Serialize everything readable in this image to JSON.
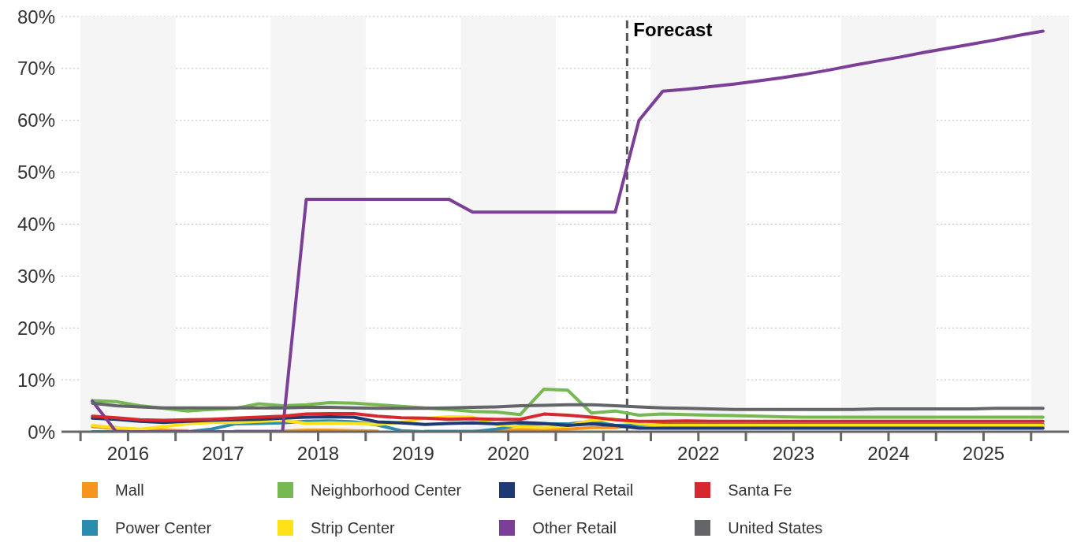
{
  "chart_data": {
    "type": "line",
    "x": [
      2016.125,
      2016.375,
      2016.625,
      2016.875,
      2017.125,
      2017.375,
      2017.625,
      2017.875,
      2018.125,
      2018.375,
      2018.625,
      2018.875,
      2019.125,
      2019.375,
      2019.625,
      2019.875,
      2020.125,
      2020.375,
      2020.625,
      2020.875,
      2021.125,
      2021.375,
      2021.625,
      2021.875,
      2022.125,
      2022.375,
      2022.625,
      2022.875,
      2023.125,
      2023.375,
      2023.625,
      2023.875,
      2024.125,
      2024.375,
      2024.625,
      2024.875,
      2025.125,
      2025.375,
      2025.625,
      2025.875,
      2026.125
    ],
    "series": [
      {
        "name": "Mall",
        "color": "#f7941d",
        "values": [
          1.0,
          0.6,
          0.4,
          0.3,
          0.2,
          null,
          0.1,
          0.1,
          0.1,
          0.3,
          0.3,
          0.2,
          0.1,
          null,
          0.1,
          0.1,
          0.1,
          0.1,
          0.4,
          0.4,
          0.5,
          0.8,
          0.8,
          1.2,
          1.8,
          1.6,
          1.4,
          1.3,
          1.0,
          1.0,
          1.0,
          1.0,
          1.0,
          1.0,
          1.0,
          1.0,
          1.0,
          1.0,
          1.0,
          1.0,
          1.0
        ]
      },
      {
        "name": "Power Center",
        "color": "#2a8cae",
        "values": [
          0,
          0,
          0,
          0,
          0,
          0.5,
          1.5,
          1.6,
          1.7,
          2.0,
          2.1,
          1.9,
          1.3,
          0.2,
          0,
          0,
          0,
          0.5,
          1.3,
          1.5,
          1.5,
          2.0,
          1.2,
          1.3,
          1.4,
          1.4,
          1.4,
          1.4,
          1.4,
          1.4,
          1.4,
          1.4,
          1.4,
          1.4,
          1.4,
          1.4,
          1.4,
          1.4,
          1.4,
          1.4,
          1.4
        ]
      },
      {
        "name": "Neighborhood Center",
        "color": "#76b852",
        "values": [
          6.0,
          5.8,
          5.0,
          4.5,
          4.0,
          4.3,
          4.5,
          5.4,
          5.0,
          5.2,
          5.6,
          5.5,
          5.2,
          4.9,
          4.6,
          4.3,
          3.9,
          3.8,
          3.3,
          8.2,
          8.0,
          3.6,
          4.0,
          3.2,
          3.4,
          3.3,
          3.2,
          3.1,
          3.0,
          2.9,
          2.8,
          2.8,
          2.8,
          2.8,
          2.8,
          2.8,
          2.8,
          2.8,
          2.8,
          2.8,
          2.8
        ]
      },
      {
        "name": "Strip Center",
        "color": "#ffe11a",
        "values": [
          1.2,
          0.8,
          0.5,
          1.0,
          1.5,
          1.8,
          1.8,
          2.0,
          2.2,
          1.6,
          1.7,
          1.6,
          1.4,
          1.8,
          2.6,
          2.9,
          2.8,
          1.4,
          1.0,
          0.8,
          1.1,
          2.2,
          2.4,
          1.5,
          1.2,
          1.2,
          1.2,
          1.2,
          1.2,
          1.2,
          1.2,
          1.2,
          1.2,
          1.2,
          1.2,
          1.2,
          1.2,
          1.2,
          1.2,
          1.2,
          1.2
        ]
      },
      {
        "name": "General Retail",
        "color": "#1f3a73",
        "values": [
          2.6,
          2.4,
          2.0,
          1.8,
          2.0,
          2.2,
          2.3,
          2.4,
          2.6,
          2.8,
          2.9,
          2.8,
          1.9,
          1.7,
          1.4,
          1.6,
          1.7,
          1.5,
          1.8,
          1.6,
          1.2,
          1.5,
          1.2,
          0.7,
          0.7,
          0.7,
          0.7,
          0.7,
          0.7,
          0.7,
          0.7,
          0.7,
          0.7,
          0.7,
          0.7,
          0.7,
          0.7,
          0.7,
          0.7,
          0.7,
          0.7
        ]
      },
      {
        "name": "Other Retail",
        "color": "#7b3f98",
        "values": [
          5.9,
          0,
          0,
          0,
          0,
          0,
          0,
          0,
          0,
          44.8,
          44.8,
          44.8,
          44.8,
          44.8,
          44.8,
          44.8,
          42.3,
          42.3,
          42.3,
          42.3,
          42.3,
          42.3,
          42.3,
          60,
          65.6,
          66.0,
          66.5,
          67.0,
          67.6,
          68.2,
          68.9,
          69.7,
          70.6,
          71.4,
          72.2,
          73.1,
          73.9,
          74.7,
          75.5,
          76.4,
          77.2
        ]
      },
      {
        "name": "Santa Fe",
        "color": "#d7282f",
        "values": [
          3.0,
          2.7,
          2.3,
          2.2,
          2.3,
          2.4,
          2.6,
          2.8,
          3.0,
          3.4,
          3.5,
          3.5,
          3.0,
          2.7,
          2.6,
          2.4,
          2.5,
          2.4,
          2.4,
          3.4,
          3.2,
          2.8,
          2.3,
          2.0,
          2.0,
          2.1,
          2.0,
          2.0,
          2.0,
          2.0,
          2.0,
          2.0,
          2.0,
          2.0,
          2.0,
          2.0,
          2.0,
          2.0,
          2.0,
          2.0,
          2.0
        ]
      },
      {
        "name": "United States",
        "color": "#646569",
        "values": [
          5.5,
          5.0,
          4.8,
          4.6,
          4.6,
          4.6,
          4.6,
          4.6,
          4.6,
          4.7,
          4.7,
          4.6,
          4.5,
          4.5,
          4.5,
          4.6,
          4.7,
          4.8,
          5.0,
          5.1,
          5.2,
          5.2,
          5.0,
          4.8,
          4.6,
          4.5,
          4.4,
          4.3,
          4.3,
          4.3,
          4.3,
          4.3,
          4.3,
          4.4,
          4.4,
          4.4,
          4.4,
          4.4,
          4.5,
          4.5,
          4.5
        ]
      }
    ],
    "xlim": [
      2015.8,
      2026.4
    ],
    "xticks": [
      {
        "value": 2016,
        "label": null
      },
      {
        "value": 2016.5,
        "label": "2016"
      },
      {
        "value": 2017,
        "label": null
      },
      {
        "value": 2017.5,
        "label": "2017"
      },
      {
        "value": 2018,
        "label": null
      },
      {
        "value": 2018.5,
        "label": "2018"
      },
      {
        "value": 2019,
        "label": null
      },
      {
        "value": 2019.5,
        "label": "2019"
      },
      {
        "value": 2020,
        "label": null
      },
      {
        "value": 2020.5,
        "label": "2020"
      },
      {
        "value": 2021,
        "label": null
      },
      {
        "value": 2021.5,
        "label": "2021"
      },
      {
        "value": 2022,
        "label": null
      },
      {
        "value": 2022.5,
        "label": "2022"
      },
      {
        "value": 2023,
        "label": null
      },
      {
        "value": 2023.5,
        "label": "2023"
      },
      {
        "value": 2024,
        "label": null
      },
      {
        "value": 2024.5,
        "label": "2024"
      },
      {
        "value": 2025,
        "label": null
      },
      {
        "value": 2025.5,
        "label": "2025"
      },
      {
        "value": 2026,
        "label": null
      }
    ],
    "ylim": [
      0,
      80
    ],
    "yticks": [
      {
        "value": 0,
        "label": "0%"
      },
      {
        "value": 10,
        "label": "10%"
      },
      {
        "value": 20,
        "label": "20%"
      },
      {
        "value": 30,
        "label": "30%"
      },
      {
        "value": 40,
        "label": "40%"
      },
      {
        "value": 50,
        "label": "50%"
      },
      {
        "value": 60,
        "label": "60%"
      },
      {
        "value": 70,
        "label": "70%"
      },
      {
        "value": 80,
        "label": "80%"
      }
    ],
    "ref_lines": [
      {
        "axis": "x",
        "value": 2021.75,
        "label": "Forecast",
        "color": "#555555",
        "line_style": "dashed"
      }
    ],
    "bands": [
      {
        "axis": "x",
        "from": 2016,
        "to": 2017,
        "color": "#f5f5f5"
      },
      {
        "axis": "x",
        "from": 2018,
        "to": 2019,
        "color": "#f5f5f5"
      },
      {
        "axis": "x",
        "from": 2020,
        "to": 2021,
        "color": "#f5f5f5"
      },
      {
        "axis": "x",
        "from": 2022,
        "to": 2023,
        "color": "#f5f5f5"
      },
      {
        "axis": "x",
        "from": 2024,
        "to": 2025,
        "color": "#f5f5f5"
      },
      {
        "axis": "x",
        "from": 2026,
        "to": 2026.4,
        "color": "#f5f5f5"
      }
    ],
    "grid": "y",
    "legend": "bottom",
    "marker": "none",
    "line_style": "solid"
  }
}
